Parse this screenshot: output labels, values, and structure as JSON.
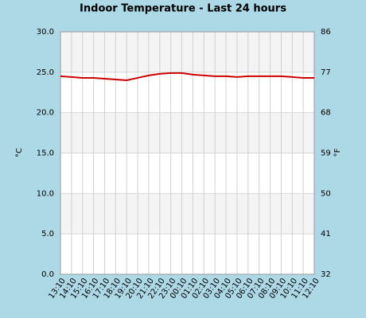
{
  "chart_data": {
    "type": "line",
    "title": "Indoor Temperature - Last 24 hours",
    "y_label": "°C",
    "y2_label": "°F",
    "categories": [
      "13:10",
      "14:10",
      "15:10",
      "16:10",
      "17:10",
      "18:10",
      "19:10",
      "20:10",
      "21:10",
      "22:10",
      "23:10",
      "00:10",
      "01:10",
      "02:10",
      "03:10",
      "04:10",
      "05:10",
      "06:10",
      "07:10",
      "08:10",
      "09:10",
      "10:10",
      "11:10",
      "12:10"
    ],
    "series": [
      {
        "color": "#cc0000",
        "values": [
          24.5,
          24.4,
          24.3,
          24.3,
          24.2,
          24.1,
          24.0,
          24.3,
          24.6,
          24.8,
          24.9,
          24.9,
          24.7,
          24.6,
          24.5,
          24.5,
          24.4,
          24.5,
          24.5,
          24.5,
          24.5,
          24.4,
          24.3,
          24.3
        ]
      }
    ],
    "ylim": [
      0,
      30
    ],
    "yticks": [
      {
        "value": 0,
        "label": "0.0"
      },
      {
        "value": 5,
        "label": "5.0"
      },
      {
        "value": 10,
        "label": "10.0"
      },
      {
        "value": 15,
        "label": "15.0"
      },
      {
        "value": 20,
        "label": "20.0"
      },
      {
        "value": 25,
        "label": "25.0"
      },
      {
        "value": 30,
        "label": "30.0"
      }
    ],
    "y2lim": [
      32,
      86
    ],
    "y2ticks": [
      32,
      41,
      50,
      59,
      68,
      77,
      86
    ],
    "grid": true
  }
}
